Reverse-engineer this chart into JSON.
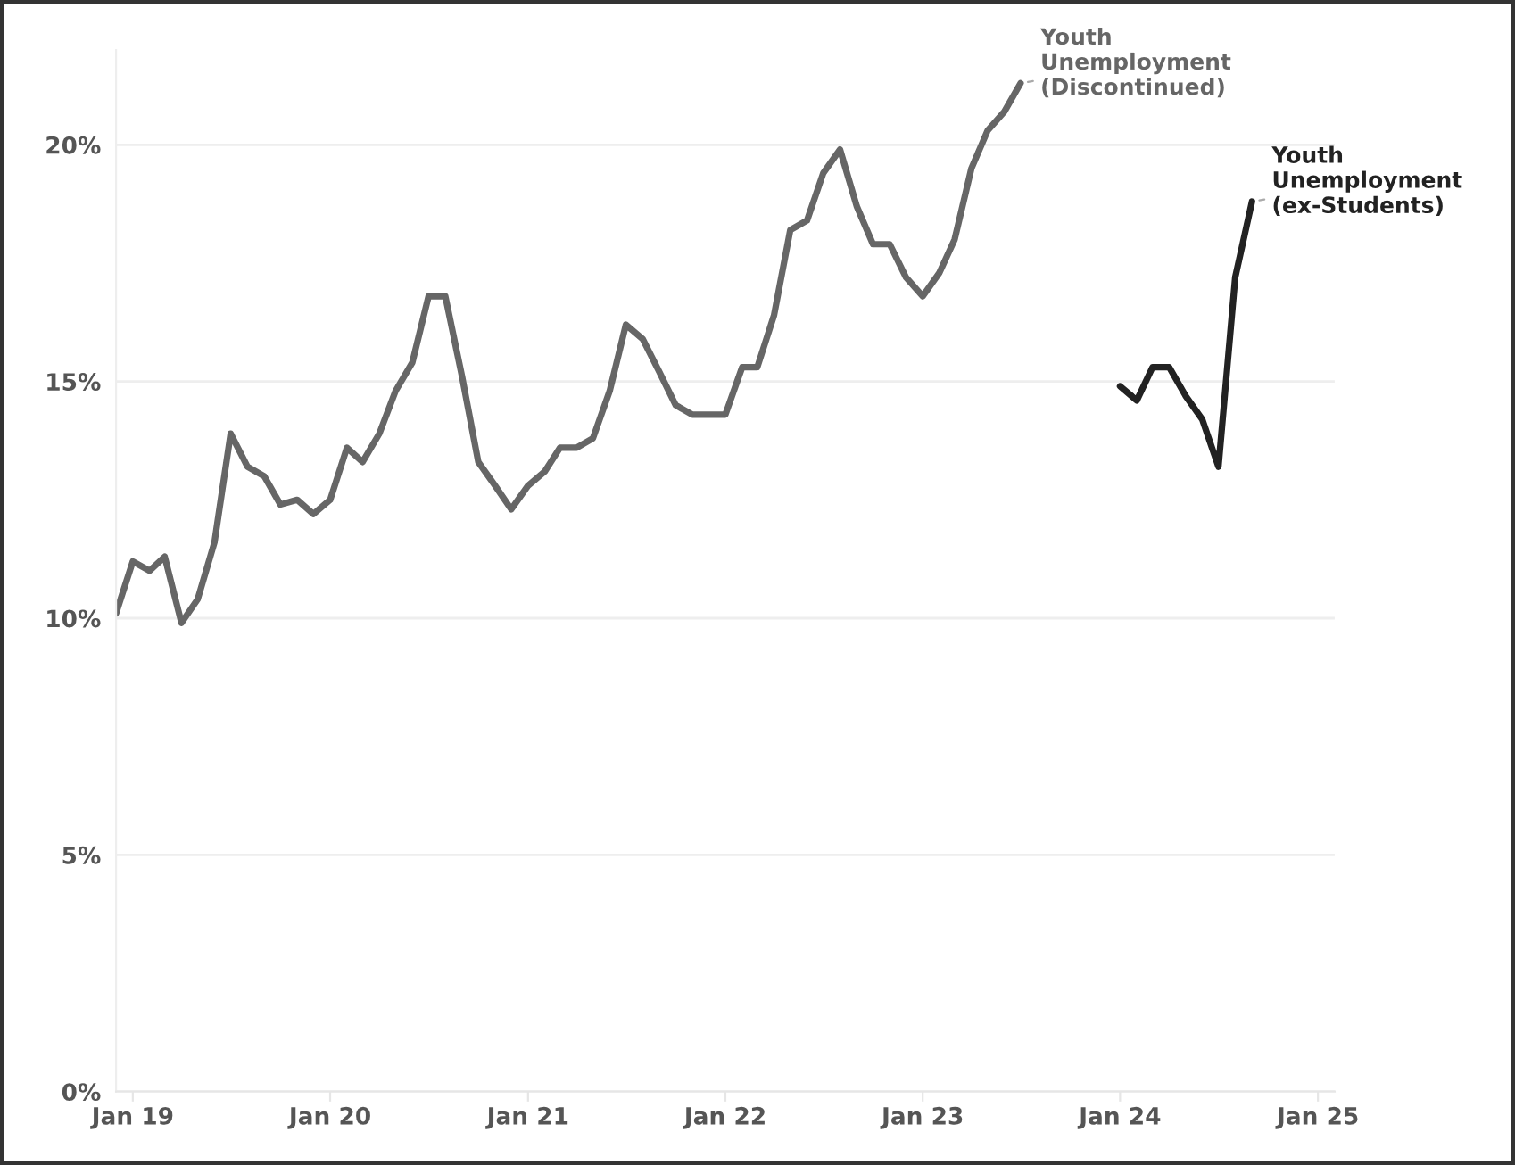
{
  "chart_data": {
    "type": "line",
    "series": [
      {
        "name": "Youth\nUnemployment\n(Discontinued)",
        "color": "#666666",
        "x": [
          "2018-12",
          "2019-01",
          "2019-02",
          "2019-03",
          "2019-04",
          "2019-05",
          "2019-06",
          "2019-07",
          "2019-08",
          "2019-09",
          "2019-10",
          "2019-11",
          "2019-12",
          "2020-01",
          "2020-02",
          "2020-03",
          "2020-04",
          "2020-05",
          "2020-06",
          "2020-07",
          "2020-08",
          "2020-09",
          "2020-10",
          "2020-11",
          "2020-12",
          "2021-01",
          "2021-02",
          "2021-03",
          "2021-04",
          "2021-05",
          "2021-06",
          "2021-07",
          "2021-08",
          "2021-09",
          "2021-10",
          "2021-11",
          "2021-12",
          "2022-01",
          "2022-02",
          "2022-03",
          "2022-04",
          "2022-05",
          "2022-06",
          "2022-07",
          "2022-08",
          "2022-09",
          "2022-10",
          "2022-11",
          "2022-12",
          "2023-01",
          "2023-02",
          "2023-03",
          "2023-04",
          "2023-05",
          "2023-06",
          "2023-07"
        ],
        "values": [
          10.1,
          11.2,
          11.0,
          11.3,
          9.9,
          10.4,
          11.6,
          13.9,
          13.2,
          13.0,
          12.4,
          12.5,
          12.2,
          12.5,
          13.6,
          13.3,
          13.9,
          14.8,
          15.4,
          16.8,
          16.8,
          15.1,
          13.3,
          12.8,
          12.3,
          12.8,
          13.1,
          13.6,
          13.6,
          13.8,
          14.8,
          16.2,
          15.9,
          15.2,
          14.5,
          14.3,
          14.3,
          14.3,
          15.3,
          15.3,
          16.4,
          18.2,
          18.4,
          19.4,
          19.9,
          18.7,
          17.9,
          17.9,
          17.2,
          16.8,
          17.3,
          18.0,
          19.5,
          20.3,
          20.7,
          21.3
        ]
      },
      {
        "name": "Youth\nUnemployment\n(ex-Students)",
        "color": "#222222",
        "x": [
          "2024-01",
          "2024-02",
          "2024-03",
          "2024-04",
          "2024-05",
          "2024-06",
          "2024-07",
          "2024-08",
          "2024-09"
        ],
        "values": [
          14.9,
          14.6,
          15.3,
          15.3,
          14.7,
          14.2,
          13.2,
          17.2,
          18.8
        ]
      }
    ],
    "xlim": [
      "2018-12",
      "2025-02"
    ],
    "xticks": [
      {
        "value": "2019-01",
        "label": "Jan 19"
      },
      {
        "value": "2020-01",
        "label": "Jan 20"
      },
      {
        "value": "2021-01",
        "label": "Jan 21"
      },
      {
        "value": "2022-01",
        "label": "Jan 22"
      },
      {
        "value": "2023-01",
        "label": "Jan 23"
      },
      {
        "value": "2024-01",
        "label": "Jan 24"
      },
      {
        "value": "2025-01",
        "label": "Jan 25"
      }
    ],
    "ylim": [
      0,
      22
    ],
    "yticks": [
      {
        "value": 0,
        "label": "0%"
      },
      {
        "value": 5,
        "label": "5%"
      },
      {
        "value": 10,
        "label": "10%"
      },
      {
        "value": 15,
        "label": "15%"
      },
      {
        "value": 20,
        "label": "20%"
      }
    ],
    "grid": "y",
    "legend": false,
    "marker": "none",
    "line_style": "solid"
  }
}
